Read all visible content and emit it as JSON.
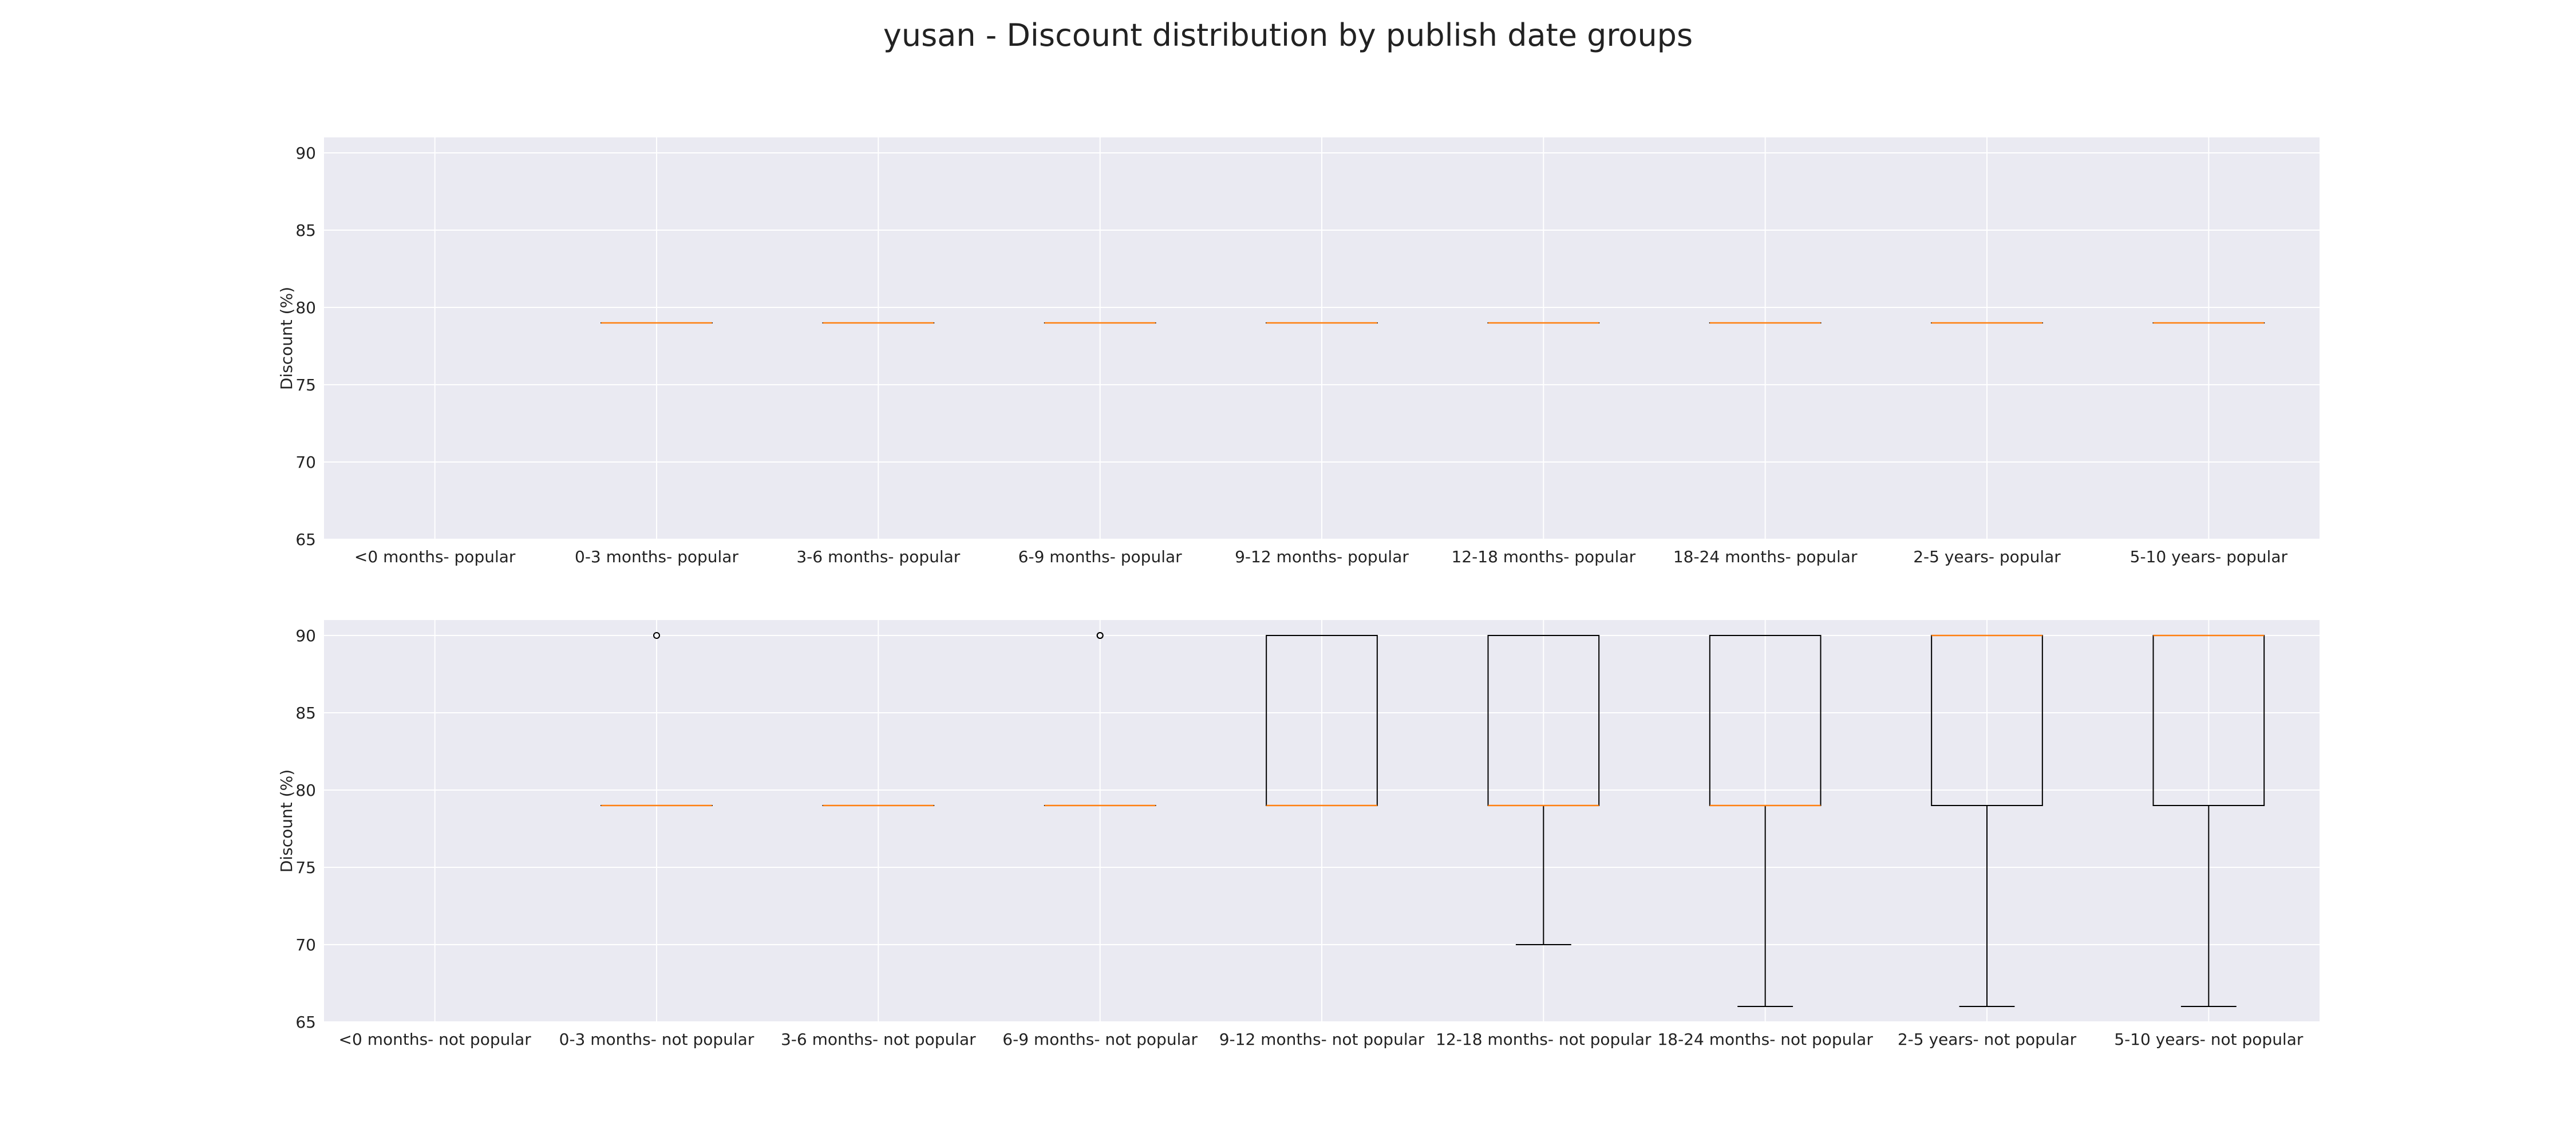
{
  "title": "yusan - Discount distribution by publish date groups",
  "chart_data": [
    {
      "type": "box",
      "ylabel": "Discount (%)",
      "ylim": [
        65,
        91
      ],
      "yticks": [
        65,
        70,
        75,
        80,
        85,
        90
      ],
      "grid": true,
      "categories": [
        "<0 months- popular",
        "0-3 months- popular",
        "3-6 months- popular",
        "6-9 months- popular",
        "9-12 months- popular",
        "12-18 months- popular",
        "18-24 months- popular",
        "2-5 years- popular",
        "5-10 years- popular"
      ],
      "boxes": [
        null,
        {
          "q1": 79,
          "median": 79,
          "q3": 79,
          "whislo": 79,
          "whishi": 79,
          "fliers": []
        },
        {
          "q1": 79,
          "median": 79,
          "q3": 79,
          "whislo": 79,
          "whishi": 79,
          "fliers": []
        },
        {
          "q1": 79,
          "median": 79,
          "q3": 79,
          "whislo": 79,
          "whishi": 79,
          "fliers": []
        },
        {
          "q1": 79,
          "median": 79,
          "q3": 79,
          "whislo": 79,
          "whishi": 79,
          "fliers": []
        },
        {
          "q1": 79,
          "median": 79,
          "q3": 79,
          "whislo": 79,
          "whishi": 79,
          "fliers": []
        },
        {
          "q1": 79,
          "median": 79,
          "q3": 79,
          "whislo": 79,
          "whishi": 79,
          "fliers": []
        },
        {
          "q1": 79,
          "median": 79,
          "q3": 79,
          "whislo": 79,
          "whishi": 79,
          "fliers": []
        },
        {
          "q1": 79,
          "median": 79,
          "q3": 79,
          "whislo": 79,
          "whishi": 79,
          "fliers": []
        }
      ]
    },
    {
      "type": "box",
      "ylabel": "Discount (%)",
      "ylim": [
        65,
        91
      ],
      "yticks": [
        65,
        70,
        75,
        80,
        85,
        90
      ],
      "grid": true,
      "categories": [
        "<0 months- not popular",
        "0-3 months- not popular",
        "3-6 months- not popular",
        "6-9 months- not popular",
        "9-12 months- not popular",
        "12-18 months- not popular",
        "18-24 months- not popular",
        "2-5 years- not popular",
        "5-10 years- not popular"
      ],
      "boxes": [
        null,
        {
          "q1": 79,
          "median": 79,
          "q3": 79,
          "whislo": 79,
          "whishi": 79,
          "fliers": [
            90
          ]
        },
        {
          "q1": 79,
          "median": 79,
          "q3": 79,
          "whislo": 79,
          "whishi": 79,
          "fliers": []
        },
        {
          "q1": 79,
          "median": 79,
          "q3": 79,
          "whislo": 79,
          "whishi": 79,
          "fliers": [
            90,
            90
          ]
        },
        {
          "q1": 79,
          "median": 79,
          "q3": 90,
          "whislo": 79,
          "whishi": 90,
          "fliers": []
        },
        {
          "q1": 79,
          "median": 79,
          "q3": 90,
          "whislo": 70,
          "whishi": 90,
          "fliers": []
        },
        {
          "q1": 79,
          "median": 79,
          "q3": 90,
          "whislo": 66,
          "whishi": 90,
          "fliers": []
        },
        {
          "q1": 79,
          "median": 90,
          "q3": 90,
          "whislo": 66,
          "whishi": 90,
          "fliers": []
        },
        {
          "q1": 79,
          "median": 90,
          "q3": 90,
          "whislo": 66,
          "whishi": 90,
          "fliers": []
        }
      ]
    }
  ]
}
